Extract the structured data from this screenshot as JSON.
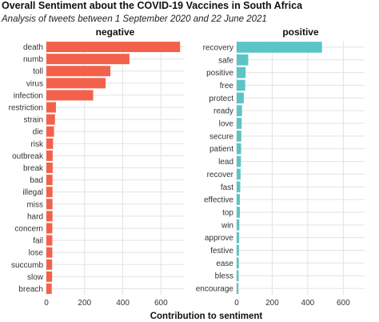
{
  "chart_data": {
    "type": "bar",
    "orientation": "horizontal",
    "title": "Overall Sentiment about the COVID-19 Vaccines in South Africa",
    "subtitle": "Analysis of tweets between 1 September 2020 and 22 June 2021",
    "xlabel": "Contribution to sentiment",
    "ylabel": "",
    "xlim": [
      0,
      720
    ],
    "xticks": [
      0,
      200,
      400,
      600
    ],
    "grid": true,
    "facets": [
      {
        "name": "negative",
        "color": "#F4614A",
        "categories": [
          "death",
          "numb",
          "toll",
          "virus",
          "infection",
          "restriction",
          "strain",
          "die",
          "risk",
          "outbreak",
          "break",
          "bad",
          "illegal",
          "miss",
          "hard",
          "concern",
          "fail",
          "lose",
          "succumb",
          "slow",
          "breach"
        ],
        "values": [
          700,
          435,
          335,
          310,
          245,
          50,
          45,
          40,
          35,
          33,
          33,
          32,
          32,
          32,
          32,
          31,
          31,
          31,
          30,
          30,
          28
        ]
      },
      {
        "name": "positive",
        "color": "#5BC4C4",
        "categories": [
          "recovery",
          "safe",
          "positive",
          "free",
          "protect",
          "ready",
          "love",
          "secure",
          "patient",
          "lead",
          "recover",
          "fast",
          "effective",
          "top",
          "win",
          "approve",
          "festive",
          "ease",
          "bless",
          "encourage"
        ],
        "values": [
          480,
          65,
          50,
          48,
          40,
          30,
          28,
          26,
          25,
          24,
          22,
          20,
          18,
          18,
          15,
          14,
          13,
          12,
          11,
          10
        ]
      }
    ]
  }
}
